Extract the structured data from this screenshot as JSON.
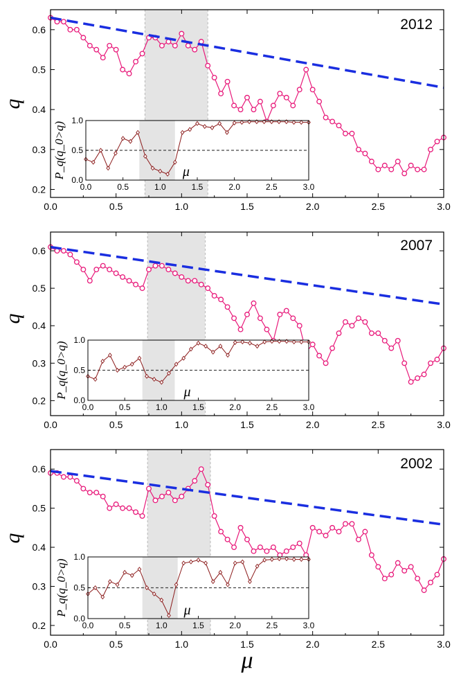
{
  "x_axis_label": "μ",
  "chart_data": [
    {
      "type": "line",
      "annotation": "2012",
      "ylabel": "q",
      "xlim": [
        0,
        3
      ],
      "ylim": [
        0.18,
        0.65
      ],
      "xticks": [
        "0.0",
        "0.5",
        "1.0",
        "1.5",
        "2.0",
        "2.5",
        "3.0"
      ],
      "yticks": [
        "0.2",
        "0.3",
        "0.4",
        "0.5",
        "0.6"
      ],
      "shaded_region": [
        0.72,
        1.2
      ],
      "trend": {
        "x": [
          0,
          3
        ],
        "y": [
          0.63,
          0.455
        ]
      },
      "series": [
        {
          "x": [
            0,
            0.05,
            0.1,
            0.15,
            0.2,
            0.25,
            0.3,
            0.35,
            0.4,
            0.45,
            0.5,
            0.55,
            0.6,
            0.65,
            0.7,
            0.75,
            0.8,
            0.85,
            0.9,
            0.95,
            1.0,
            1.05,
            1.1,
            1.15,
            1.2,
            1.25,
            1.3,
            1.35,
            1.4,
            1.45,
            1.5,
            1.55,
            1.6,
            1.65,
            1.7,
            1.75,
            1.8,
            1.85,
            1.9,
            1.95,
            2.0,
            2.05,
            2.1,
            2.15,
            2.2,
            2.25,
            2.3,
            2.35,
            2.4,
            2.45,
            2.5,
            2.55,
            2.6,
            2.65,
            2.7,
            2.75,
            2.8,
            2.85,
            2.9,
            2.95,
            3.0
          ],
          "y": [
            0.63,
            0.62,
            0.62,
            0.6,
            0.6,
            0.58,
            0.56,
            0.55,
            0.53,
            0.56,
            0.55,
            0.5,
            0.49,
            0.52,
            0.54,
            0.58,
            0.58,
            0.56,
            0.57,
            0.56,
            0.59,
            0.56,
            0.55,
            0.57,
            0.51,
            0.48,
            0.44,
            0.47,
            0.41,
            0.4,
            0.43,
            0.4,
            0.42,
            0.37,
            0.41,
            0.44,
            0.43,
            0.41,
            0.45,
            0.5,
            0.45,
            0.42,
            0.38,
            0.37,
            0.36,
            0.34,
            0.34,
            0.3,
            0.29,
            0.27,
            0.25,
            0.26,
            0.25,
            0.27,
            0.24,
            0.26,
            0.25,
            0.25,
            0.3,
            0.32,
            0.33
          ]
        }
      ],
      "inset": {
        "ylabel": "P_q(q_0>q)",
        "xlabel": "μ",
        "xlim": [
          0,
          3
        ],
        "ylim": [
          0,
          1
        ],
        "xticks": [
          "0.0",
          "0.5",
          "1.0",
          "1.5",
          "2.0",
          "2.5",
          "3.0"
        ],
        "yticks": [
          "0.0",
          "0.5",
          "1.0"
        ],
        "shaded_region": [
          0.72,
          1.2
        ],
        "reference_line": 0.5,
        "series": [
          {
            "x": [
              0,
              0.1,
              0.2,
              0.3,
              0.4,
              0.5,
              0.6,
              0.7,
              0.8,
              0.9,
              1.0,
              1.1,
              1.2,
              1.3,
              1.4,
              1.5,
              1.6,
              1.7,
              1.8,
              1.9,
              2.0,
              2.1,
              2.2,
              2.3,
              2.4,
              2.5,
              2.6,
              2.7,
              2.8,
              2.9,
              3.0
            ],
            "y": [
              0.35,
              0.3,
              0.5,
              0.2,
              0.45,
              0.7,
              0.65,
              0.8,
              0.4,
              0.2,
              0.15,
              0.1,
              0.3,
              0.8,
              0.85,
              0.95,
              0.9,
              0.88,
              0.95,
              0.8,
              0.96,
              0.97,
              0.98,
              0.98,
              0.98,
              0.98,
              0.98,
              0.98,
              0.97,
              0.97,
              0.97
            ]
          }
        ]
      }
    },
    {
      "type": "line",
      "annotation": "2007",
      "ylabel": "q",
      "xlim": [
        0,
        3
      ],
      "ylim": [
        0.16,
        0.65
      ],
      "xticks": [
        "0.0",
        "0.5",
        "1.0",
        "1.5",
        "2.0",
        "2.5",
        "3.0"
      ],
      "yticks": [
        "0.2",
        "0.3",
        "0.4",
        "0.5",
        "0.6"
      ],
      "shaded_region": [
        0.74,
        1.18
      ],
      "trend": {
        "x": [
          0,
          3
        ],
        "y": [
          0.61,
          0.457
        ]
      },
      "series": [
        {
          "x": [
            0,
            0.05,
            0.1,
            0.15,
            0.2,
            0.25,
            0.3,
            0.35,
            0.4,
            0.45,
            0.5,
            0.55,
            0.6,
            0.65,
            0.7,
            0.75,
            0.8,
            0.85,
            0.9,
            0.95,
            1.0,
            1.05,
            1.1,
            1.15,
            1.2,
            1.25,
            1.3,
            1.35,
            1.4,
            1.45,
            1.5,
            1.55,
            1.6,
            1.65,
            1.7,
            1.75,
            1.8,
            1.85,
            1.9,
            1.95,
            2.0,
            2.05,
            2.1,
            2.15,
            2.2,
            2.25,
            2.3,
            2.35,
            2.4,
            2.45,
            2.5,
            2.55,
            2.6,
            2.65,
            2.7,
            2.75,
            2.8,
            2.85,
            2.9,
            2.95,
            3.0
          ],
          "y": [
            0.61,
            0.6,
            0.6,
            0.59,
            0.57,
            0.55,
            0.52,
            0.55,
            0.56,
            0.55,
            0.54,
            0.53,
            0.52,
            0.51,
            0.5,
            0.55,
            0.56,
            0.56,
            0.55,
            0.54,
            0.53,
            0.52,
            0.52,
            0.51,
            0.5,
            0.48,
            0.47,
            0.45,
            0.42,
            0.39,
            0.43,
            0.46,
            0.42,
            0.39,
            0.36,
            0.43,
            0.44,
            0.42,
            0.4,
            0.33,
            0.35,
            0.32,
            0.3,
            0.34,
            0.38,
            0.41,
            0.4,
            0.42,
            0.41,
            0.38,
            0.38,
            0.36,
            0.34,
            0.36,
            0.3,
            0.25,
            0.26,
            0.27,
            0.3,
            0.31,
            0.34
          ]
        }
      ],
      "inset": {
        "ylabel": "P_q(q_0>q)",
        "xlabel": "μ",
        "xlim": [
          0,
          3
        ],
        "ylim": [
          0,
          1
        ],
        "xticks": [
          "0.0",
          "0.5",
          "1.0",
          "1.5",
          "2.0",
          "2.5",
          "3.0"
        ],
        "yticks": [
          "0.0",
          "0.5",
          "1.0"
        ],
        "shaded_region": [
          0.74,
          1.18
        ],
        "reference_line": 0.5,
        "series": [
          {
            "x": [
              0,
              0.1,
              0.2,
              0.3,
              0.4,
              0.5,
              0.6,
              0.7,
              0.8,
              0.9,
              1.0,
              1.1,
              1.2,
              1.3,
              1.4,
              1.5,
              1.6,
              1.7,
              1.8,
              1.9,
              2.0,
              2.1,
              2.2,
              2.3,
              2.4,
              2.5,
              2.6,
              2.7,
              2.8,
              2.9,
              3.0
            ],
            "y": [
              0.4,
              0.35,
              0.65,
              0.75,
              0.5,
              0.55,
              0.6,
              0.7,
              0.4,
              0.35,
              0.3,
              0.45,
              0.6,
              0.7,
              0.85,
              0.95,
              0.9,
              0.8,
              0.9,
              0.75,
              0.96,
              0.97,
              0.95,
              0.9,
              0.97,
              0.98,
              0.98,
              0.98,
              0.97,
              0.97,
              0.97
            ]
          }
        ]
      }
    },
    {
      "type": "line",
      "annotation": "2002",
      "ylabel": "q",
      "xlim": [
        0,
        3
      ],
      "ylim": [
        0.175,
        0.65
      ],
      "xticks": [
        "0.0",
        "0.5",
        "1.0",
        "1.5",
        "2.0",
        "2.5",
        "3.0"
      ],
      "yticks": [
        "0.2",
        "0.3",
        "0.4",
        "0.5",
        "0.6"
      ],
      "shaded_region": [
        0.74,
        1.22
      ],
      "trend": {
        "x": [
          0,
          3
        ],
        "y": [
          0.595,
          0.458
        ]
      },
      "series": [
        {
          "x": [
            0,
            0.05,
            0.1,
            0.15,
            0.2,
            0.25,
            0.3,
            0.35,
            0.4,
            0.45,
            0.5,
            0.55,
            0.6,
            0.65,
            0.7,
            0.75,
            0.8,
            0.85,
            0.9,
            0.95,
            1.0,
            1.05,
            1.1,
            1.15,
            1.2,
            1.25,
            1.3,
            1.35,
            1.4,
            1.45,
            1.5,
            1.55,
            1.6,
            1.65,
            1.7,
            1.75,
            1.8,
            1.85,
            1.9,
            1.95,
            2.0,
            2.05,
            2.1,
            2.15,
            2.2,
            2.25,
            2.3,
            2.35,
            2.4,
            2.45,
            2.5,
            2.55,
            2.6,
            2.65,
            2.7,
            2.75,
            2.8,
            2.85,
            2.9,
            2.95,
            3.0
          ],
          "y": [
            0.59,
            0.59,
            0.58,
            0.58,
            0.57,
            0.55,
            0.54,
            0.54,
            0.53,
            0.5,
            0.51,
            0.5,
            0.5,
            0.49,
            0.48,
            0.55,
            0.52,
            0.53,
            0.54,
            0.52,
            0.53,
            0.55,
            0.57,
            0.6,
            0.56,
            0.48,
            0.44,
            0.42,
            0.4,
            0.45,
            0.42,
            0.39,
            0.4,
            0.39,
            0.4,
            0.38,
            0.39,
            0.4,
            0.41,
            0.38,
            0.45,
            0.44,
            0.43,
            0.45,
            0.44,
            0.46,
            0.46,
            0.42,
            0.44,
            0.38,
            0.35,
            0.32,
            0.33,
            0.36,
            0.34,
            0.35,
            0.32,
            0.29,
            0.31,
            0.33,
            0.37
          ]
        }
      ],
      "inset": {
        "ylabel": "P_q(q_0>q)",
        "xlabel": "μ",
        "xlim": [
          0,
          3
        ],
        "ylim": [
          0,
          1
        ],
        "xticks": [
          "0.0",
          "0.5",
          "1.0",
          "1.5",
          "2.0",
          "2.5",
          "3.0"
        ],
        "yticks": [
          "0.0",
          "0.5",
          "1.0"
        ],
        "shaded_region": [
          0.74,
          1.22
        ],
        "reference_line": 0.5,
        "series": [
          {
            "x": [
              0,
              0.1,
              0.2,
              0.3,
              0.4,
              0.5,
              0.6,
              0.7,
              0.8,
              0.9,
              1.0,
              1.1,
              1.2,
              1.3,
              1.4,
              1.5,
              1.6,
              1.7,
              1.8,
              1.9,
              2.0,
              2.1,
              2.2,
              2.3,
              2.4,
              2.5,
              2.6,
              2.7,
              2.8,
              2.9,
              3.0
            ],
            "y": [
              0.4,
              0.5,
              0.35,
              0.6,
              0.55,
              0.75,
              0.7,
              0.8,
              0.5,
              0.4,
              0.3,
              0.05,
              0.55,
              0.9,
              0.92,
              0.95,
              0.9,
              0.6,
              0.75,
              0.55,
              0.9,
              0.92,
              0.6,
              0.85,
              0.95,
              0.96,
              0.97,
              0.97,
              0.96,
              0.96,
              0.96
            ]
          }
        ]
      }
    }
  ]
}
